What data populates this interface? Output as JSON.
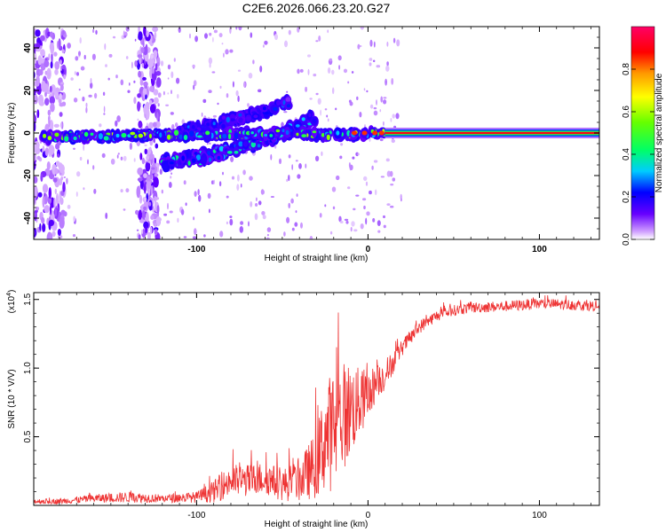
{
  "title": "C2E6.2026.066.23.20.G27",
  "chart_data": [
    {
      "type": "heatmap",
      "name": "spectrogram",
      "xlabel": "Height of straight line (km)",
      "ylabel": "Frequency (Hz)",
      "xlim": [
        -195,
        135
      ],
      "ylim": [
        -50,
        50
      ],
      "xticks": [
        -100,
        0,
        100
      ],
      "xtick_labels": [
        "-100",
        "0",
        "100"
      ],
      "yticks": [
        -40,
        -20,
        0,
        20,
        40
      ],
      "ytick_labels": [
        "-40",
        "-20",
        "0",
        "20",
        "40"
      ],
      "colorbar": {
        "label": "Normalized spectral amplitude",
        "range": [
          0,
          1
        ],
        "ticks": [
          0.0,
          0.2,
          0.4,
          0.6,
          0.8
        ],
        "tick_labels": [
          "0.0",
          "0.2",
          "0.4",
          "0.6",
          "0.8"
        ],
        "colors": [
          "#ffffff",
          "#cc99ff",
          "#6600ff",
          "#0000ff",
          "#00ccff",
          "#00ff66",
          "#66ff00",
          "#ffff00",
          "#ff9900",
          "#ff0000",
          "#ff0066"
        ]
      },
      "features": [
        {
          "label": "carrier",
          "x_start": 10,
          "x_end": 135,
          "freq": 0,
          "amplitude": 1.0
        },
        {
          "label": "main branch",
          "x": [
            -190,
            -120,
            -90,
            -60,
            -40,
            -25,
            -10,
            0,
            10
          ],
          "freq": [
            -2,
            -1,
            -1,
            0,
            0,
            -1,
            -1,
            0,
            0
          ],
          "amplitude": 0.45
        },
        {
          "label": "upper branch",
          "x": [
            -110,
            -90,
            -70,
            -55,
            -45
          ],
          "freq": [
            0,
            4,
            8,
            12,
            15
          ],
          "amplitude": 0.2
        },
        {
          "label": "lower branch",
          "x": [
            -120,
            -100,
            -80,
            -60,
            -40,
            -30
          ],
          "freq": [
            -14,
            -12,
            -8,
            -3,
            3,
            8
          ],
          "amplitude": 0.3
        },
        {
          "label": "scattered energy",
          "x_centers": [
            -188,
            -128
          ],
          "amplitude": 0.1
        }
      ]
    },
    {
      "type": "line",
      "name": "snr",
      "xlabel": "Height of straight line (km)",
      "ylabel": "SNR (10 * V/V)",
      "y_exponent_label": "(x10",
      "y_exponent": "4",
      "xlim": [
        -195,
        135
      ],
      "ylim": [
        0,
        1.55
      ],
      "xticks": [
        -100,
        0,
        100
      ],
      "xtick_labels": [
        "-100",
        "0",
        "100"
      ],
      "yticks": [
        0.5,
        1.0,
        1.5
      ],
      "ytick_labels": [
        "0.5",
        "1.0",
        "1.5"
      ],
      "color": "#ee3333",
      "x": [
        -195,
        -180,
        -160,
        -140,
        -120,
        -100,
        -90,
        -80,
        -70,
        -60,
        -50,
        -40,
        -30,
        -25,
        -20,
        -15,
        -10,
        -5,
        0,
        5,
        10,
        15,
        20,
        30,
        40,
        50,
        60,
        80,
        100,
        120,
        135
      ],
      "y": [
        0.03,
        0.03,
        0.05,
        0.06,
        0.05,
        0.06,
        0.1,
        0.18,
        0.18,
        0.2,
        0.15,
        0.18,
        0.3,
        0.5,
        0.55,
        0.65,
        0.7,
        0.75,
        0.8,
        0.9,
        0.95,
        1.05,
        1.15,
        1.3,
        1.38,
        1.42,
        1.44,
        1.45,
        1.47,
        1.46,
        1.45
      ],
      "noise": [
        0.02,
        0.02,
        0.03,
        0.04,
        0.03,
        0.04,
        0.08,
        0.12,
        0.12,
        0.12,
        0.12,
        0.15,
        0.25,
        0.4,
        0.45,
        0.4,
        0.35,
        0.25,
        0.2,
        0.12,
        0.12,
        0.08,
        0.06,
        0.05,
        0.04,
        0.04,
        0.04,
        0.04,
        0.04,
        0.04,
        0.04
      ]
    }
  ]
}
